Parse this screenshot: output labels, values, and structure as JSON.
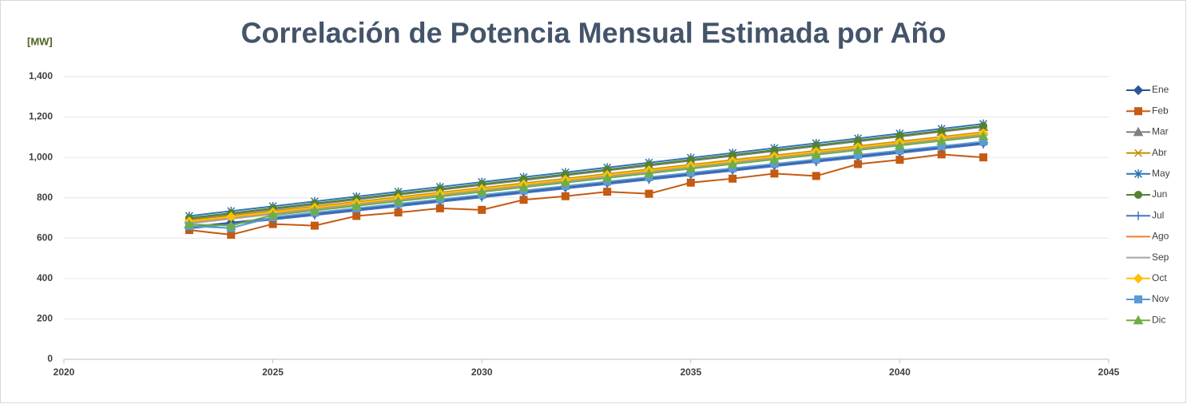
{
  "chart_data": {
    "type": "line",
    "title": "Correlación de Potencia Mensual Estimada por Año",
    "y_label": "[MW]",
    "x": [
      2023,
      2024,
      2025,
      2026,
      2027,
      2028,
      2029,
      2030,
      2031,
      2032,
      2033,
      2034,
      2035,
      2036,
      2037,
      2038,
      2039,
      2040,
      2041,
      2042
    ],
    "xlim": [
      2020,
      2045
    ],
    "xticks": [
      2020,
      2025,
      2030,
      2035,
      2040,
      2045
    ],
    "ylim": [
      0,
      1400
    ],
    "yticks": [
      0,
      200,
      400,
      600,
      800,
      {
        "value": 1000,
        "label": "1,000"
      },
      {
        "value": 1200,
        "label": "1,200"
      },
      {
        "value": 1400,
        "label": "1,400"
      }
    ],
    "grid": true,
    "legend": "right",
    "series": [
      {
        "name": "Ene",
        "color": "#2f5597",
        "marker": "diamond",
        "values": [
          655,
          677,
          699,
          721,
          743,
          765,
          787,
          809,
          831,
          853,
          875,
          897,
          919,
          941,
          963,
          985,
          1007,
          1029,
          1051,
          1073
        ]
      },
      {
        "name": "Feb",
        "color": "#c55a11",
        "marker": "square",
        "values": [
          640,
          617,
          670,
          662,
          710,
          727,
          748,
          740,
          790,
          808,
          830,
          820,
          875,
          895,
          920,
          908,
          967,
          988,
          1015,
          1000
        ]
      },
      {
        "name": "Mar",
        "color": "#7f7f7f",
        "marker": "triangle",
        "values": [
          695,
          719,
          743,
          767,
          791,
          815,
          839,
          863,
          887,
          911,
          935,
          959,
          983,
          1007,
          1031,
          1055,
          1079,
          1103,
          1127,
          1151
        ]
      },
      {
        "name": "Abr",
        "color": "#bf9000",
        "marker": "x",
        "values": [
          688,
          711,
          734,
          757,
          780,
          803,
          826,
          849,
          872,
          895,
          918,
          941,
          964,
          987,
          1010,
          1033,
          1056,
          1079,
          1102,
          1125
        ]
      },
      {
        "name": "May",
        "color": "#2e75b6",
        "marker": "star",
        "values": [
          710,
          734,
          758,
          782,
          806,
          830,
          854,
          878,
          902,
          926,
          950,
          974,
          998,
          1022,
          1046,
          1070,
          1094,
          1118,
          1142,
          1166
        ]
      },
      {
        "name": "Jun",
        "color": "#548235",
        "marker": "circle",
        "values": [
          700,
          724,
          748,
          772,
          796,
          820,
          844,
          868,
          892,
          916,
          940,
          964,
          988,
          1012,
          1036,
          1060,
          1084,
          1108,
          1132,
          1156
        ]
      },
      {
        "name": "Jul",
        "color": "#4472c4",
        "marker": "plus",
        "values": [
          648,
          670,
          692,
          714,
          736,
          758,
          780,
          802,
          824,
          846,
          868,
          890,
          912,
          934,
          956,
          978,
          1000,
          1022,
          1044,
          1066
        ]
      },
      {
        "name": "Ago",
        "color": "#ed7d31",
        "marker": "dash",
        "values": [
          678,
          701,
          724,
          747,
          770,
          793,
          816,
          839,
          862,
          885,
          908,
          931,
          954,
          977,
          1000,
          1023,
          1046,
          1069,
          1092,
          1115
        ]
      },
      {
        "name": "Sep",
        "color": "#a5a5a5",
        "marker": "dash",
        "values": [
          673,
          696,
          719,
          742,
          765,
          788,
          811,
          834,
          857,
          880,
          903,
          926,
          949,
          972,
          995,
          1018,
          1041,
          1064,
          1087,
          1110
        ]
      },
      {
        "name": "Oct",
        "color": "#ffc000",
        "marker": "diamond",
        "values": [
          683,
          706,
          729,
          752,
          775,
          798,
          821,
          844,
          867,
          890,
          913,
          936,
          959,
          982,
          1005,
          1028,
          1051,
          1074,
          1097,
          1120
        ]
      },
      {
        "name": "Nov",
        "color": "#5b9bd5",
        "marker": "square",
        "values": [
          660,
          650,
          704,
          726,
          748,
          770,
          792,
          814,
          836,
          858,
          880,
          902,
          924,
          946,
          968,
          990,
          1012,
          1034,
          1056,
          1078
        ]
      },
      {
        "name": "Dic",
        "color": "#70ad47",
        "marker": "triangle",
        "values": [
          668,
          662,
          714,
          737,
          760,
          783,
          806,
          829,
          852,
          875,
          898,
          921,
          944,
          967,
          990,
          1013,
          1036,
          1059,
          1082,
          1105
        ]
      }
    ]
  }
}
